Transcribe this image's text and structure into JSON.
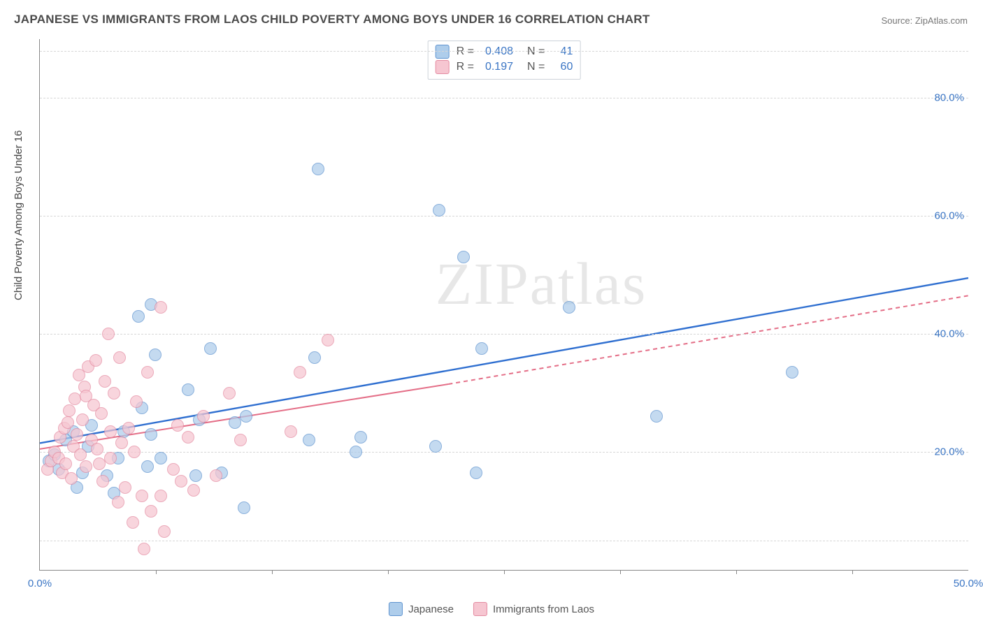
{
  "title": "JAPANESE VS IMMIGRANTS FROM LAOS CHILD POVERTY AMONG BOYS UNDER 16 CORRELATION CHART",
  "source": "Source: ZipAtlas.com",
  "watermark": "ZIPatlas",
  "y_axis_label": "Child Poverty Among Boys Under 16",
  "chart": {
    "type": "scatter",
    "background_color": "#ffffff",
    "grid_color": "#d7d7d7",
    "axis_color": "#888888",
    "xlim": [
      0,
      50
    ],
    "ylim": [
      0,
      90
    ],
    "x_ticks": [
      {
        "pos": 0.0,
        "label": "0.0%"
      },
      {
        "pos": 50.0,
        "label": "50.0%"
      }
    ],
    "x_tick_marks": [
      6.25,
      12.5,
      18.75,
      25,
      31.25,
      37.5,
      43.75
    ],
    "y_ticks": [
      {
        "pos": 20.0,
        "label": "20.0%"
      },
      {
        "pos": 40.0,
        "label": "40.0%"
      },
      {
        "pos": 60.0,
        "label": "60.0%"
      },
      {
        "pos": 80.0,
        "label": "80.0%"
      }
    ],
    "y_gridlines": [
      5,
      20,
      40,
      60,
      80,
      88
    ],
    "series": [
      {
        "name": "Japanese",
        "fill_color": "#aecdeb",
        "stroke_color": "#5e93cf",
        "line_color": "#2f6fd0",
        "line_dash": "none",
        "line_width": 2.4,
        "R": "0.408",
        "N": "41",
        "trend": {
          "x1": 0,
          "y1": 21.5,
          "x2": 50,
          "y2": 49.5
        },
        "points": [
          {
            "x": 0.5,
            "y": 18.5
          },
          {
            "x": 0.8,
            "y": 19.5
          },
          {
            "x": 1.0,
            "y": 17.0
          },
          {
            "x": 1.4,
            "y": 22.0
          },
          {
            "x": 1.8,
            "y": 23.5
          },
          {
            "x": 2.0,
            "y": 14.0
          },
          {
            "x": 2.3,
            "y": 16.5
          },
          {
            "x": 2.6,
            "y": 21.0
          },
          {
            "x": 3.6,
            "y": 16.0
          },
          {
            "x": 4.0,
            "y": 13.0
          },
          {
            "x": 4.2,
            "y": 19.0
          },
          {
            "x": 5.3,
            "y": 43.0
          },
          {
            "x": 5.5,
            "y": 27.5
          },
          {
            "x": 5.8,
            "y": 17.5
          },
          {
            "x": 6.0,
            "y": 23.0
          },
          {
            "x": 6.2,
            "y": 36.5
          },
          {
            "x": 6.5,
            "y": 19.0
          },
          {
            "x": 8.0,
            "y": 30.5
          },
          {
            "x": 8.4,
            "y": 16.0
          },
          {
            "x": 8.6,
            "y": 25.5
          },
          {
            "x": 9.2,
            "y": 37.5
          },
          {
            "x": 9.8,
            "y": 16.5
          },
          {
            "x": 10.5,
            "y": 25.0
          },
          {
            "x": 11.0,
            "y": 10.5
          },
          {
            "x": 11.1,
            "y": 26.0
          },
          {
            "x": 15.0,
            "y": 68.0
          },
          {
            "x": 14.5,
            "y": 22.0
          },
          {
            "x": 14.8,
            "y": 36.0
          },
          {
            "x": 17.0,
            "y": 20.0
          },
          {
            "x": 17.3,
            "y": 22.5
          },
          {
            "x": 21.3,
            "y": 21.0
          },
          {
            "x": 21.5,
            "y": 61.0
          },
          {
            "x": 22.8,
            "y": 53.0
          },
          {
            "x": 23.8,
            "y": 37.5
          },
          {
            "x": 23.5,
            "y": 16.5
          },
          {
            "x": 28.5,
            "y": 44.5
          },
          {
            "x": 33.2,
            "y": 26.0
          },
          {
            "x": 40.5,
            "y": 33.5
          },
          {
            "x": 2.8,
            "y": 24.5
          },
          {
            "x": 6.0,
            "y": 45.0
          },
          {
            "x": 4.5,
            "y": 23.5
          }
        ]
      },
      {
        "name": "Immigrants from Laos",
        "fill_color": "#f6c6d1",
        "stroke_color": "#e48aa0",
        "line_color": "#e46e87",
        "line_dash": "6,5",
        "line_width": 2.0,
        "R": "0.197",
        "N": "60",
        "trend_solid": {
          "x1": 0,
          "y1": 20.5,
          "x2": 22,
          "y2": 31.5
        },
        "trend": {
          "x1": 22,
          "y1": 31.5,
          "x2": 50,
          "y2": 46.5
        },
        "points": [
          {
            "x": 0.4,
            "y": 17.0
          },
          {
            "x": 0.6,
            "y": 18.5
          },
          {
            "x": 0.8,
            "y": 20.0
          },
          {
            "x": 1.0,
            "y": 19.0
          },
          {
            "x": 1.1,
            "y": 22.5
          },
          {
            "x": 1.2,
            "y": 16.5
          },
          {
            "x": 1.3,
            "y": 24.0
          },
          {
            "x": 1.4,
            "y": 18.0
          },
          {
            "x": 1.6,
            "y": 27.0
          },
          {
            "x": 1.7,
            "y": 15.5
          },
          {
            "x": 1.8,
            "y": 21.0
          },
          {
            "x": 1.9,
            "y": 29.0
          },
          {
            "x": 2.0,
            "y": 23.0
          },
          {
            "x": 2.1,
            "y": 33.0
          },
          {
            "x": 2.2,
            "y": 19.5
          },
          {
            "x": 2.3,
            "y": 25.5
          },
          {
            "x": 2.4,
            "y": 31.0
          },
          {
            "x": 2.5,
            "y": 17.5
          },
          {
            "x": 2.6,
            "y": 34.5
          },
          {
            "x": 2.8,
            "y": 22.0
          },
          {
            "x": 2.9,
            "y": 28.0
          },
          {
            "x": 3.0,
            "y": 35.5
          },
          {
            "x": 3.1,
            "y": 20.5
          },
          {
            "x": 3.3,
            "y": 26.5
          },
          {
            "x": 3.4,
            "y": 15.0
          },
          {
            "x": 3.5,
            "y": 32.0
          },
          {
            "x": 3.7,
            "y": 40.0
          },
          {
            "x": 3.8,
            "y": 23.5
          },
          {
            "x": 4.0,
            "y": 30.0
          },
          {
            "x": 4.2,
            "y": 11.5
          },
          {
            "x": 4.3,
            "y": 36.0
          },
          {
            "x": 4.6,
            "y": 14.0
          },
          {
            "x": 4.8,
            "y": 24.0
          },
          {
            "x": 5.0,
            "y": 8.0
          },
          {
            "x": 5.2,
            "y": 28.5
          },
          {
            "x": 5.5,
            "y": 12.5
          },
          {
            "x": 5.6,
            "y": 3.5
          },
          {
            "x": 5.8,
            "y": 33.5
          },
          {
            "x": 6.0,
            "y": 10.0
          },
          {
            "x": 6.5,
            "y": 44.5
          },
          {
            "x": 6.5,
            "y": 12.5
          },
          {
            "x": 6.7,
            "y": 6.5
          },
          {
            "x": 7.2,
            "y": 17.0
          },
          {
            "x": 7.4,
            "y": 24.5
          },
          {
            "x": 7.6,
            "y": 15.0
          },
          {
            "x": 8.0,
            "y": 22.5
          },
          {
            "x": 8.3,
            "y": 13.5
          },
          {
            "x": 8.8,
            "y": 26.0
          },
          {
            "x": 9.5,
            "y": 16.0
          },
          {
            "x": 10.2,
            "y": 30.0
          },
          {
            "x": 10.8,
            "y": 22.0
          },
          {
            "x": 13.5,
            "y": 23.5
          },
          {
            "x": 14.0,
            "y": 33.5
          },
          {
            "x": 15.5,
            "y": 39.0
          },
          {
            "x": 3.8,
            "y": 19.0
          },
          {
            "x": 4.4,
            "y": 21.5
          },
          {
            "x": 2.5,
            "y": 29.5
          },
          {
            "x": 1.5,
            "y": 25.0
          },
          {
            "x": 3.2,
            "y": 18.0
          },
          {
            "x": 5.1,
            "y": 20.0
          }
        ]
      }
    ]
  },
  "bottom_legend": [
    {
      "label": "Japanese",
      "fill": "#aecdeb",
      "stroke": "#5e93cf"
    },
    {
      "label": "Immigrants from Laos",
      "fill": "#f6c6d1",
      "stroke": "#e48aa0"
    }
  ]
}
